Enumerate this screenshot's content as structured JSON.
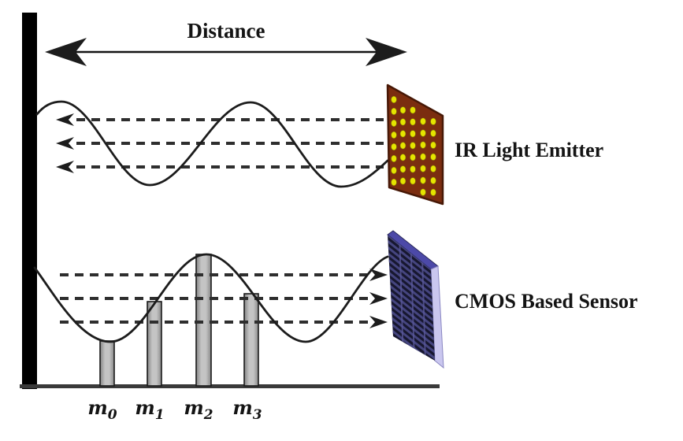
{
  "figure": {
    "distance_label": "Distance",
    "emitter_label": "IR Light Emitter",
    "sensor_label": "CMOS Based Sensor",
    "samples": [
      {
        "base": "m",
        "sub": "0"
      },
      {
        "base": "m",
        "sub": "1"
      },
      {
        "base": "m",
        "sub": "2"
      },
      {
        "base": "m",
        "sub": "3"
      }
    ],
    "colors": {
      "ink": "#1c1c1c",
      "wall": "#000000",
      "baseline": "#3a3a3a",
      "emitter_panel": "#7b2d10",
      "emitter_border": "#471806",
      "emitter_dot": "#e6e400",
      "sensor_front": "#17172f",
      "sensor_stripe": "#45457f",
      "sensor_top": "#4c49a8",
      "sensor_side": "#cac7ef",
      "bar_fill": "#9c9c9c"
    }
  }
}
